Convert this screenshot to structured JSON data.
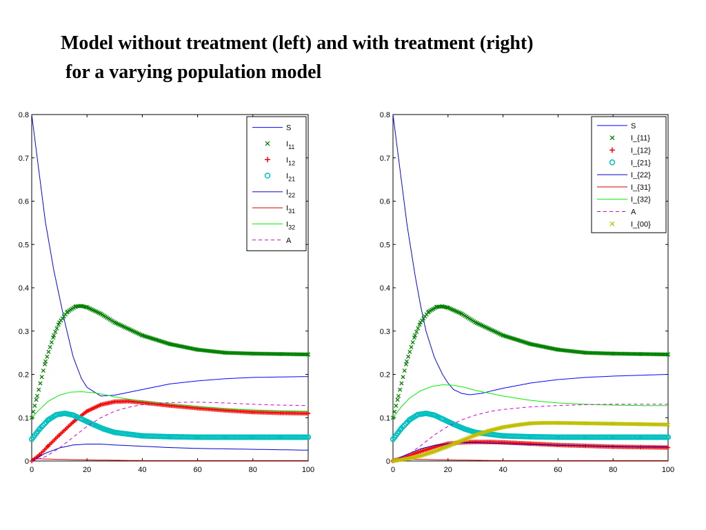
{
  "title_lines": [
    "Model without treatment (left) and with treatment (right)",
    " for a varying population model"
  ],
  "colors": {
    "S": "#0000ff",
    "I11": "#008000",
    "I12": "#ff0000",
    "I21": "#00bfbf",
    "I22": "#0000cc",
    "I31": "#cc0000",
    "I32": "#00ee00",
    "A": "#cc00cc",
    "I00": "#bfbf00"
  },
  "chart_data": [
    {
      "type": "line",
      "xlim": [
        0,
        100
      ],
      "ylim": [
        0,
        0.8
      ],
      "xticks": [
        0,
        20,
        40,
        60,
        80,
        100
      ],
      "yticks": [
        0,
        0.1,
        0.2,
        0.3,
        0.4,
        0.5,
        0.6,
        0.7,
        0.8
      ],
      "ytick_labels": [
        "0",
        "0.1",
        "0.2",
        "0.3",
        "0.4",
        "0.5",
        "0.6",
        "0.7",
        "0.8"
      ],
      "grid": false,
      "legend_position": "top-right",
      "series": [
        {
          "key": "S",
          "label": "S",
          "label_sub": "",
          "style": "line",
          "color": "#0000ff",
          "x": [
            0,
            2,
            5,
            8,
            10,
            12,
            15,
            18,
            20,
            25,
            30,
            40,
            50,
            60,
            70,
            80,
            90,
            100
          ],
          "y": [
            0.8,
            0.7,
            0.55,
            0.44,
            0.38,
            0.32,
            0.24,
            0.19,
            0.17,
            0.15,
            0.152,
            0.165,
            0.178,
            0.185,
            0.19,
            0.193,
            0.194,
            0.195
          ]
        },
        {
          "key": "I11",
          "label": "I",
          "label_sub": "11",
          "style": "marker-x",
          "color": "#008000",
          "x": [
            0,
            2,
            5,
            8,
            10,
            13,
            16,
            18,
            20,
            25,
            30,
            40,
            50,
            60,
            70,
            80,
            90,
            100
          ],
          "y": [
            0.1,
            0.15,
            0.23,
            0.29,
            0.32,
            0.345,
            0.357,
            0.358,
            0.355,
            0.34,
            0.32,
            0.29,
            0.27,
            0.257,
            0.25,
            0.248,
            0.247,
            0.246
          ]
        },
        {
          "key": "I12",
          "label": "I",
          "label_sub": "12",
          "style": "marker-plus",
          "color": "#ff0000",
          "x": [
            0,
            3,
            6,
            10,
            15,
            20,
            25,
            30,
            35,
            40,
            50,
            60,
            70,
            80,
            90,
            100
          ],
          "y": [
            0,
            0.015,
            0.035,
            0.06,
            0.09,
            0.115,
            0.13,
            0.137,
            0.138,
            0.135,
            0.128,
            0.122,
            0.117,
            0.113,
            0.111,
            0.11
          ]
        },
        {
          "key": "I21",
          "label": "I",
          "label_sub": "21",
          "style": "marker-o",
          "color": "#00bfbf",
          "x": [
            0,
            3,
            6,
            9,
            12,
            15,
            18,
            22,
            26,
            30,
            40,
            50,
            60,
            70,
            80,
            90,
            100
          ],
          "y": [
            0.05,
            0.075,
            0.095,
            0.107,
            0.11,
            0.106,
            0.097,
            0.085,
            0.074,
            0.066,
            0.058,
            0.056,
            0.055,
            0.055,
            0.055,
            0.055,
            0.055
          ]
        },
        {
          "key": "I22",
          "label": "I",
          "label_sub": "22",
          "style": "line",
          "color": "#0000cc",
          "x": [
            0,
            5,
            10,
            15,
            20,
            25,
            30,
            40,
            50,
            60,
            70,
            80,
            90,
            100
          ],
          "y": [
            0,
            0.018,
            0.03,
            0.037,
            0.039,
            0.039,
            0.037,
            0.034,
            0.031,
            0.029,
            0.028,
            0.027,
            0.026,
            0.025
          ]
        },
        {
          "key": "I31",
          "label": "I",
          "label_sub": "31",
          "style": "line",
          "color": "#cc0000",
          "x": [
            0,
            3,
            8,
            15,
            25,
            40,
            60,
            80,
            100
          ],
          "y": [
            0.005,
            0.005,
            0.004,
            0.003,
            0.002,
            0.001,
            0.001,
            0.001,
            0.001
          ]
        },
        {
          "key": "I32",
          "label": "I",
          "label_sub": "32",
          "style": "line",
          "color": "#00ee00",
          "x": [
            0,
            3,
            6,
            10,
            14,
            18,
            22,
            26,
            30,
            40,
            50,
            60,
            70,
            80,
            90,
            100
          ],
          "y": [
            0.1,
            0.12,
            0.138,
            0.152,
            0.159,
            0.16,
            0.158,
            0.154,
            0.148,
            0.138,
            0.132,
            0.126,
            0.121,
            0.118,
            0.116,
            0.115
          ]
        },
        {
          "key": "A",
          "label": "A",
          "label_sub": "",
          "style": "dash",
          "color": "#cc00cc",
          "x": [
            0,
            5,
            10,
            15,
            20,
            25,
            30,
            35,
            40,
            50,
            60,
            70,
            80,
            90,
            100
          ],
          "y": [
            0,
            0.01,
            0.03,
            0.055,
            0.08,
            0.1,
            0.115,
            0.124,
            0.13,
            0.135,
            0.136,
            0.134,
            0.131,
            0.129,
            0.128
          ]
        }
      ]
    },
    {
      "type": "line",
      "xlim": [
        0,
        100
      ],
      "ylim": [
        0,
        0.8
      ],
      "xticks": [
        0,
        20,
        40,
        60,
        80,
        100
      ],
      "yticks": [
        0,
        0.1,
        0.2,
        0.3,
        0.4,
        0.5,
        0.6,
        0.7,
        0.8
      ],
      "ytick_labels": [
        "0",
        "0.1",
        "0.2",
        "0.3",
        "0.4",
        "0.5",
        "0.6",
        "0.7",
        "0.8"
      ],
      "grid": false,
      "legend_position": "top-right",
      "series": [
        {
          "key": "S",
          "label": "S",
          "label_sub": "",
          "style": "line",
          "color": "#0000ff",
          "x": [
            0,
            2,
            5,
            8,
            10,
            12,
            15,
            18,
            20,
            22,
            25,
            28,
            32,
            40,
            50,
            60,
            70,
            80,
            90,
            100
          ],
          "y": [
            0.8,
            0.7,
            0.55,
            0.43,
            0.36,
            0.3,
            0.24,
            0.2,
            0.18,
            0.165,
            0.156,
            0.153,
            0.156,
            0.168,
            0.18,
            0.188,
            0.193,
            0.196,
            0.198,
            0.2
          ]
        },
        {
          "key": "I11",
          "label": "I_{11}",
          "label_sub": "",
          "style": "marker-x",
          "color": "#008000",
          "x": [
            0,
            2,
            5,
            8,
            10,
            13,
            16,
            18,
            20,
            25,
            30,
            40,
            50,
            60,
            70,
            80,
            90,
            100
          ],
          "y": [
            0.1,
            0.15,
            0.23,
            0.29,
            0.32,
            0.345,
            0.356,
            0.357,
            0.354,
            0.34,
            0.32,
            0.29,
            0.27,
            0.257,
            0.25,
            0.248,
            0.247,
            0.246
          ]
        },
        {
          "key": "I12",
          "label": "I_{12}",
          "label_sub": "",
          "style": "marker-plus",
          "color": "#ff0000",
          "x": [
            0,
            5,
            10,
            15,
            20,
            25,
            30,
            35,
            40,
            50,
            60,
            70,
            80,
            90,
            100
          ],
          "y": [
            0,
            0.01,
            0.022,
            0.032,
            0.04,
            0.043,
            0.044,
            0.044,
            0.043,
            0.04,
            0.037,
            0.035,
            0.033,
            0.032,
            0.031
          ]
        },
        {
          "key": "I21",
          "label": "I_{21}",
          "label_sub": "",
          "style": "marker-o",
          "color": "#00bfbf",
          "x": [
            0,
            3,
            6,
            9,
            12,
            15,
            18,
            22,
            26,
            30,
            40,
            50,
            60,
            70,
            80,
            90,
            100
          ],
          "y": [
            0.05,
            0.075,
            0.095,
            0.107,
            0.11,
            0.106,
            0.097,
            0.085,
            0.074,
            0.066,
            0.058,
            0.056,
            0.055,
            0.055,
            0.055,
            0.055,
            0.055
          ]
        },
        {
          "key": "I22",
          "label": "I_{22}",
          "label_sub": "",
          "style": "line",
          "color": "#0000cc",
          "x": [
            0,
            5,
            10,
            15,
            20,
            25,
            30,
            40,
            50,
            60,
            70,
            80,
            90,
            100
          ],
          "y": [
            0,
            0.015,
            0.028,
            0.036,
            0.04,
            0.042,
            0.042,
            0.04,
            0.038,
            0.036,
            0.035,
            0.034,
            0.033,
            0.033
          ]
        },
        {
          "key": "I31",
          "label": "I_{31}",
          "label_sub": "",
          "style": "line",
          "color": "#cc0000",
          "x": [
            0,
            3,
            8,
            15,
            25,
            40,
            60,
            80,
            100
          ],
          "y": [
            0.005,
            0.005,
            0.004,
            0.003,
            0.002,
            0.001,
            0.001,
            0.001,
            0.001
          ]
        },
        {
          "key": "I32",
          "label": "I_{32}",
          "label_sub": "",
          "style": "line",
          "color": "#00ee00",
          "x": [
            0,
            3,
            6,
            10,
            14,
            18,
            22,
            26,
            30,
            40,
            50,
            60,
            70,
            80,
            90,
            100
          ],
          "y": [
            0.1,
            0.125,
            0.145,
            0.162,
            0.172,
            0.176,
            0.175,
            0.17,
            0.163,
            0.15,
            0.14,
            0.134,
            0.131,
            0.129,
            0.128,
            0.128
          ]
        },
        {
          "key": "A",
          "label": "A",
          "label_sub": "",
          "style": "dash",
          "color": "#cc00cc",
          "x": [
            0,
            5,
            10,
            15,
            20,
            25,
            30,
            35,
            40,
            50,
            60,
            70,
            80,
            90,
            100
          ],
          "y": [
            0,
            0.012,
            0.035,
            0.06,
            0.08,
            0.095,
            0.106,
            0.114,
            0.119,
            0.125,
            0.128,
            0.13,
            0.131,
            0.131,
            0.131
          ]
        },
        {
          "key": "I00",
          "label": "I_{00}",
          "label_sub": "",
          "style": "marker-x",
          "color": "#bfbf00",
          "x": [
            0,
            5,
            10,
            15,
            20,
            25,
            30,
            35,
            40,
            45,
            50,
            55,
            60,
            70,
            80,
            90,
            100
          ],
          "y": [
            0,
            0.005,
            0.012,
            0.022,
            0.034,
            0.047,
            0.06,
            0.07,
            0.078,
            0.083,
            0.087,
            0.088,
            0.088,
            0.087,
            0.086,
            0.085,
            0.084
          ]
        }
      ]
    }
  ]
}
